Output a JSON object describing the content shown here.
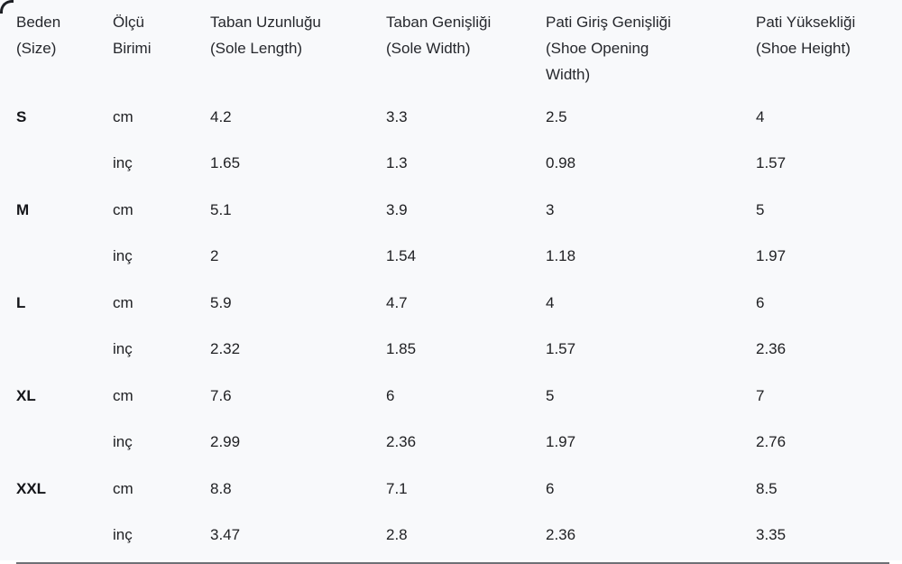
{
  "theme": {
    "background": "#f8f9fb",
    "text": "#202124",
    "bottom_line": "#55585e",
    "corner_border": "#1d1f24"
  },
  "chart_data": {
    "type": "table",
    "title": "",
    "columns": [
      {
        "label": "Beden (Size)",
        "tr": "Beden",
        "en": "(Size)"
      },
      {
        "label": "Ölçü Birimi",
        "tr": "Ölçü",
        "en": "Birimi"
      },
      {
        "label": "Taban Uzunluğu (Sole Length)",
        "tr": "Taban Uzunluğu",
        "en": "(Sole Length)"
      },
      {
        "label": "Taban Genişliği (Sole Width)",
        "tr": "Taban Genişliği",
        "en": "(Sole Width)"
      },
      {
        "label": "Pati Giriş Genişliği (Shoe Opening Width)",
        "tr": "Pati Giriş Genişliği",
        "en": "(Shoe Opening Width)"
      },
      {
        "label": "Pati Yüksekliği (Shoe Height)",
        "tr": "Pati Yüksekliği",
        "en": "(Shoe Height)"
      }
    ],
    "rows": [
      {
        "size": "S",
        "unit": "cm",
        "values": [
          "4.2",
          "3.3",
          "2.5",
          "4"
        ]
      },
      {
        "size": "",
        "unit": "inç",
        "values": [
          "1.65",
          "1.3",
          "0.98",
          "1.57"
        ]
      },
      {
        "size": "M",
        "unit": "cm",
        "values": [
          "5.1",
          "3.9",
          "3",
          "5"
        ]
      },
      {
        "size": "",
        "unit": "inç",
        "values": [
          "2",
          "1.54",
          "1.18",
          "1.97"
        ]
      },
      {
        "size": "L",
        "unit": "cm",
        "values": [
          "5.9",
          "4.7",
          "4",
          "6"
        ]
      },
      {
        "size": "",
        "unit": "inç",
        "values": [
          "2.32",
          "1.85",
          "1.57",
          "2.36"
        ]
      },
      {
        "size": "XL",
        "unit": "cm",
        "values": [
          "7.6",
          "6",
          "5",
          "7"
        ]
      },
      {
        "size": "",
        "unit": "inç",
        "values": [
          "2.99",
          "2.36",
          "1.97",
          "2.76"
        ]
      },
      {
        "size": "XXL",
        "unit": "cm",
        "values": [
          "8.8",
          "7.1",
          "6",
          "8.5"
        ]
      },
      {
        "size": "",
        "unit": "inç",
        "values": [
          "3.47",
          "2.8",
          "2.36",
          "3.35"
        ]
      }
    ]
  }
}
